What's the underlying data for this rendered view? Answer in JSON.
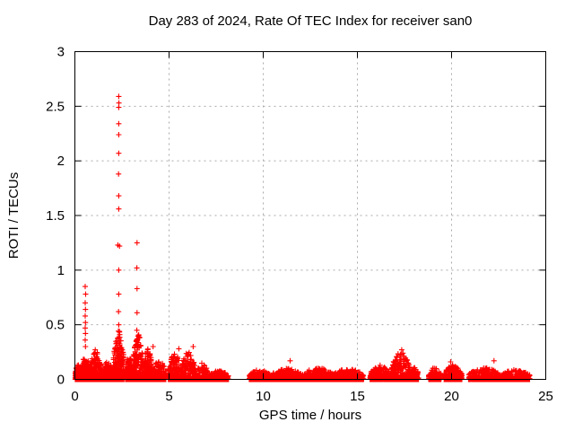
{
  "chart_data": {
    "type": "scatter",
    "title": "Day 283 of 2024, Rate Of TEC Index for receiver san0",
    "xlabel": "GPS time / hours",
    "ylabel": "ROTI / TECUs",
    "xlim": [
      0,
      25
    ],
    "ylim": [
      0,
      3
    ],
    "xticks": [
      0,
      5,
      10,
      15,
      20,
      25
    ],
    "xtick_labels": [
      "0",
      "5",
      "10",
      "15",
      "20",
      "25"
    ],
    "yticks": [
      0,
      0.5,
      1,
      1.5,
      2,
      2.5,
      3
    ],
    "ytick_labels": [
      "0",
      "0.5",
      "1",
      "1.5",
      "2",
      "2.5",
      "3"
    ],
    "grid": true,
    "legend_position": "none",
    "marker": "plus",
    "marker_color": "#ff0000",
    "grid_color": "#ababab",
    "axis_color": "#000000",
    "background_color": "#ffffff",
    "spike_points": [
      [
        0.56,
        0.3
      ],
      [
        0.55,
        0.36
      ],
      [
        0.56,
        0.42
      ],
      [
        0.55,
        0.47
      ],
      [
        0.56,
        0.52
      ],
      [
        0.55,
        0.58
      ],
      [
        0.56,
        0.64
      ],
      [
        0.55,
        0.7
      ],
      [
        0.57,
        0.78
      ],
      [
        0.55,
        0.85
      ],
      [
        2.33,
        0.5
      ],
      [
        2.32,
        0.62
      ],
      [
        2.33,
        0.78
      ],
      [
        2.33,
        1.0
      ],
      [
        2.28,
        1.23
      ],
      [
        2.37,
        1.22
      ],
      [
        2.33,
        1.56
      ],
      [
        2.33,
        1.68
      ],
      [
        2.32,
        1.88
      ],
      [
        2.33,
        2.07
      ],
      [
        2.33,
        2.24
      ],
      [
        2.33,
        2.34
      ],
      [
        2.33,
        2.49
      ],
      [
        2.34,
        2.53
      ],
      [
        2.33,
        2.59
      ],
      [
        3.3,
        0.36
      ],
      [
        3.29,
        0.45
      ],
      [
        3.3,
        0.61
      ],
      [
        3.3,
        0.83
      ],
      [
        3.29,
        1.02
      ],
      [
        3.3,
        1.25
      ],
      [
        1.08,
        0.27
      ],
      [
        4.15,
        0.3
      ],
      [
        5.52,
        0.28
      ],
      [
        6.28,
        0.3
      ],
      [
        11.43,
        0.17
      ],
      [
        17.35,
        0.27
      ],
      [
        17.42,
        0.24
      ],
      [
        19.95,
        0.16
      ],
      [
        22.25,
        0.17
      ]
    ],
    "dense_clusters": [
      {
        "x0": 0.02,
        "x1": 0.32,
        "peak": 0.14,
        "n": 160
      },
      {
        "x0": 0.32,
        "x1": 0.8,
        "peak": 0.22,
        "n": 220
      },
      {
        "x0": 0.8,
        "x1": 1.4,
        "peak": 0.26,
        "n": 280
      },
      {
        "x0": 1.4,
        "x1": 2.05,
        "peak": 0.16,
        "n": 260
      },
      {
        "x0": 2.05,
        "x1": 2.62,
        "peak": 0.46,
        "n": 340
      },
      {
        "x0": 2.68,
        "x1": 3.08,
        "peak": 0.24,
        "n": 200
      },
      {
        "x0": 3.08,
        "x1": 3.62,
        "peak": 0.42,
        "n": 280
      },
      {
        "x0": 3.62,
        "x1": 4.12,
        "peak": 0.28,
        "n": 220
      },
      {
        "x0": 4.12,
        "x1": 4.84,
        "peak": 0.18,
        "n": 240
      },
      {
        "x0": 4.96,
        "x1": 5.65,
        "peak": 0.24,
        "n": 240
      },
      {
        "x0": 5.65,
        "x1": 6.42,
        "peak": 0.26,
        "n": 240
      },
      {
        "x0": 6.42,
        "x1": 7.1,
        "peak": 0.15,
        "n": 200
      },
      {
        "x0": 7.1,
        "x1": 8.2,
        "peak": 0.08,
        "n": 260
      },
      {
        "x0": 9.25,
        "x1": 10.4,
        "peak": 0.09,
        "n": 300
      },
      {
        "x0": 10.4,
        "x1": 12.1,
        "peak": 0.1,
        "n": 420
      },
      {
        "x0": 12.1,
        "x1": 13.7,
        "peak": 0.11,
        "n": 400
      },
      {
        "x0": 13.7,
        "x1": 15.33,
        "peak": 0.1,
        "n": 400
      },
      {
        "x0": 15.67,
        "x1": 16.8,
        "peak": 0.13,
        "n": 300
      },
      {
        "x0": 16.8,
        "x1": 17.8,
        "peak": 0.25,
        "n": 300
      },
      {
        "x0": 17.8,
        "x1": 18.25,
        "peak": 0.11,
        "n": 120
      },
      {
        "x0": 18.78,
        "x1": 19.45,
        "peak": 0.11,
        "n": 160
      },
      {
        "x0": 19.6,
        "x1": 20.55,
        "peak": 0.13,
        "n": 260
      },
      {
        "x0": 20.9,
        "x1": 22.6,
        "peak": 0.11,
        "n": 400
      },
      {
        "x0": 22.6,
        "x1": 24.15,
        "peak": 0.09,
        "n": 380
      }
    ],
    "data_gaps_hours": [
      [
        8.2,
        9.25
      ],
      [
        15.33,
        15.67
      ],
      [
        18.25,
        18.78
      ],
      [
        20.55,
        20.9
      ]
    ],
    "zero_fraction": 0.25
  }
}
